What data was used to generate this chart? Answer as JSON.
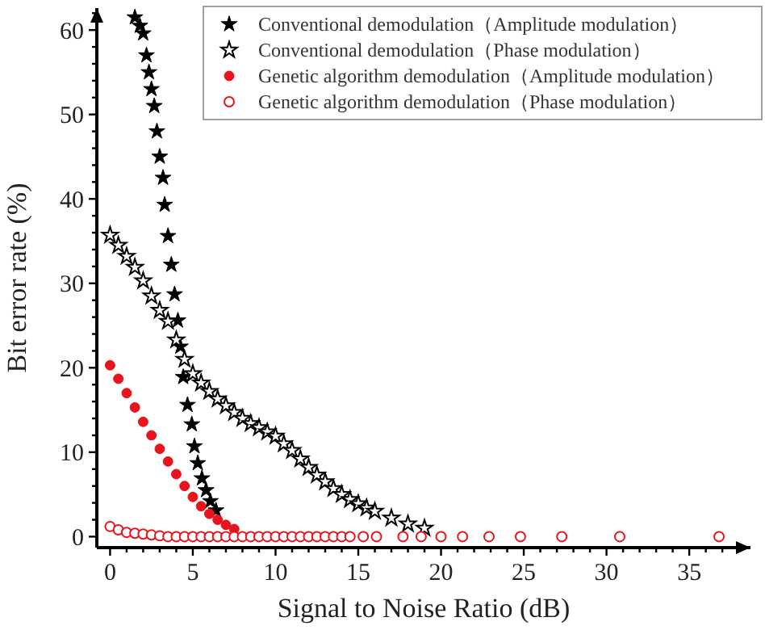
{
  "chart_data": {
    "type": "scatter",
    "xlabel": "Signal to Noise Ratio (dB)",
    "ylabel": "Bit error rate (%)",
    "xlim": [
      -0.8,
      38.7
    ],
    "ylim": [
      -1.3,
      62.6
    ],
    "xticks": [
      0,
      {
        "value": 1,
        "label": null
      },
      {
        "value": 2,
        "label": null
      },
      {
        "value": 3,
        "label": null
      },
      {
        "value": 4,
        "label": null
      },
      5,
      {
        "value": 6,
        "label": null
      },
      {
        "value": 7,
        "label": null
      },
      {
        "value": 8,
        "label": null
      },
      {
        "value": 9,
        "label": null
      },
      10,
      {
        "value": 11,
        "label": null
      },
      {
        "value": 12,
        "label": null
      },
      {
        "value": 13,
        "label": null
      },
      {
        "value": 14,
        "label": null
      },
      15,
      {
        "value": 16,
        "label": null
      },
      {
        "value": 17,
        "label": null
      },
      {
        "value": 18,
        "label": null
      },
      {
        "value": 19,
        "label": null
      },
      20,
      {
        "value": 21,
        "label": null
      },
      {
        "value": 22,
        "label": null
      },
      {
        "value": 23,
        "label": null
      },
      {
        "value": 24,
        "label": null
      },
      25,
      {
        "value": 26,
        "label": null
      },
      {
        "value": 27,
        "label": null
      },
      {
        "value": 28,
        "label": null
      },
      {
        "value": 29,
        "label": null
      },
      30,
      {
        "value": 31,
        "label": null
      },
      {
        "value": 32,
        "label": null
      },
      {
        "value": 33,
        "label": null
      },
      {
        "value": 34,
        "label": null
      },
      35,
      {
        "value": 36,
        "label": null
      },
      {
        "value": 37,
        "label": null
      },
      {
        "value": 38,
        "label": null
      }
    ],
    "yticks": [
      0,
      {
        "value": 2,
        "label": null
      },
      {
        "value": 4,
        "label": null
      },
      {
        "value": 6,
        "label": null
      },
      {
        "value": 8,
        "label": null
      },
      10,
      {
        "value": 12,
        "label": null
      },
      {
        "value": 14,
        "label": null
      },
      {
        "value": 16,
        "label": null
      },
      {
        "value": 18,
        "label": null
      },
      20,
      {
        "value": 22,
        "label": null
      },
      {
        "value": 24,
        "label": null
      },
      {
        "value": 26,
        "label": null
      },
      {
        "value": 28,
        "label": null
      },
      30,
      {
        "value": 32,
        "label": null
      },
      {
        "value": 34,
        "label": null
      },
      {
        "value": 36,
        "label": null
      },
      {
        "value": 38,
        "label": null
      },
      40,
      {
        "value": 42,
        "label": null
      },
      {
        "value": 44,
        "label": null
      },
      {
        "value": 46,
        "label": null
      },
      {
        "value": 48,
        "label": null
      },
      50,
      {
        "value": 52,
        "label": null
      },
      {
        "value": 54,
        "label": null
      },
      {
        "value": 56,
        "label": null
      },
      {
        "value": 58,
        "label": null
      },
      60,
      {
        "value": 62,
        "label": null
      }
    ],
    "grid": false,
    "legend": "top right",
    "series": [
      {
        "name": "Conventional demodulation（Amplitude modulation）",
        "color": "#000000",
        "marker": "star",
        "x": [
          1.5,
          1.8,
          2.0,
          2.2,
          2.35,
          2.5,
          2.67,
          2.83,
          3.0,
          3.2,
          3.3,
          3.5,
          3.7,
          3.9,
          4.1,
          4.25,
          4.42,
          4.68,
          4.94,
          5.1,
          5.3,
          5.55,
          5.8,
          6.06,
          6.4
        ],
        "values": [
          61.5,
          60.5,
          59.6,
          57,
          55,
          53,
          51,
          48,
          45,
          42.5,
          39.3,
          35.6,
          32.2,
          28.7,
          25.6,
          22.5,
          18.9,
          15.6,
          13.3,
          10.7,
          8.7,
          6.9,
          5.5,
          4.2,
          3.1
        ]
      },
      {
        "name": "Conventional demodulation（Phase modulation）",
        "color": "#000000",
        "marker": "star",
        "x": [
          0,
          0.5,
          1,
          1.5,
          2,
          2.5,
          3,
          3.5,
          4,
          4.5,
          5,
          5.5,
          6,
          6.5,
          7,
          7.5,
          8,
          8.5,
          9,
          9.5,
          10,
          10.5,
          11,
          11.5,
          12,
          12.5,
          13,
          13.5,
          14,
          14.5,
          15,
          15.5,
          16,
          17,
          18,
          19
        ],
        "values": [
          35.7,
          34.5,
          33.2,
          31.9,
          30.3,
          28.5,
          26.8,
          25.5,
          23.3,
          21,
          19.3,
          18.2,
          17.2,
          16.3,
          15.5,
          14.7,
          14,
          13.4,
          12.9,
          12.4,
          11.9,
          11,
          10.2,
          9.2,
          8.2,
          7.3,
          6.5,
          5.7,
          5,
          4.4,
          3.9,
          3.4,
          3.0,
          2.2,
          1.5,
          1.0
        ]
      },
      {
        "name": "Genetic algorithm demodulation（Amplitude modulation）",
        "color": "#e8141c",
        "marker": "circle",
        "x": [
          0,
          0.5,
          1,
          1.5,
          2,
          2.5,
          3,
          3.5,
          4,
          4.5,
          5,
          5.5,
          6,
          6.5,
          7,
          7.5
        ],
        "values": [
          20.3,
          18.7,
          17,
          15.3,
          13.6,
          12,
          10.4,
          8.9,
          7.4,
          6,
          4.7,
          3.6,
          2.7,
          2,
          1.4,
          0.9
        ]
      },
      {
        "name": "Genetic algorithm demodulation（Phase modulation）",
        "color": "#e8141c",
        "marker": "circle",
        "x": [
          0,
          0.5,
          1,
          1.5,
          2,
          2.5,
          3,
          3.5,
          4,
          4.5,
          5,
          5.5,
          6,
          6.5,
          7,
          7.5,
          8,
          8.5,
          9,
          9.5,
          10,
          10.5,
          11,
          11.5,
          12,
          12.5,
          13,
          13.5,
          14,
          14.5,
          15.3,
          16.1,
          17.7,
          18.8,
          20,
          21.3,
          22.9,
          24.8,
          27.3,
          30.8,
          36.8
        ],
        "values": [
          1.2,
          0.8,
          0.5,
          0.4,
          0.3,
          0.2,
          0.1,
          0,
          0,
          0,
          0,
          0,
          0,
          0,
          0,
          0,
          0,
          0,
          0,
          0,
          0,
          0,
          0,
          0,
          0,
          0,
          0,
          0,
          0,
          0,
          0,
          0,
          0,
          0,
          0,
          0,
          0,
          0,
          0,
          0,
          0
        ]
      }
    ]
  }
}
